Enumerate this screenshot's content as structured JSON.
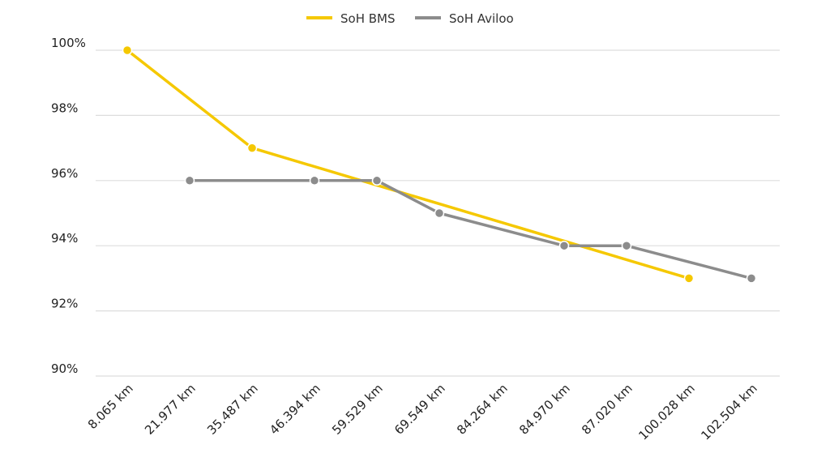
{
  "chart_data": {
    "type": "line",
    "categories": [
      "8.065 km",
      "21.977 km",
      "35.487 km",
      "46.394 km",
      "59.529 km",
      "69.549 km",
      "84.264 km",
      "84.970 km",
      "87.020 km",
      "100.028 km",
      "102.504 km"
    ],
    "series": [
      {
        "name": "SoH BMS",
        "color": "#f5c800",
        "values": [
          100,
          null,
          97,
          null,
          null,
          null,
          null,
          null,
          null,
          93,
          null
        ]
      },
      {
        "name": "SoH Aviloo",
        "color": "#8c8c8c",
        "values": [
          null,
          96,
          null,
          96,
          96,
          95,
          null,
          94,
          94,
          null,
          93
        ]
      }
    ],
    "yticks": [
      "90%",
      "92%",
      "94%",
      "96%",
      "98%",
      "100%"
    ],
    "ylim": [
      90,
      100
    ],
    "grid": true,
    "legend_position": "top-center"
  }
}
